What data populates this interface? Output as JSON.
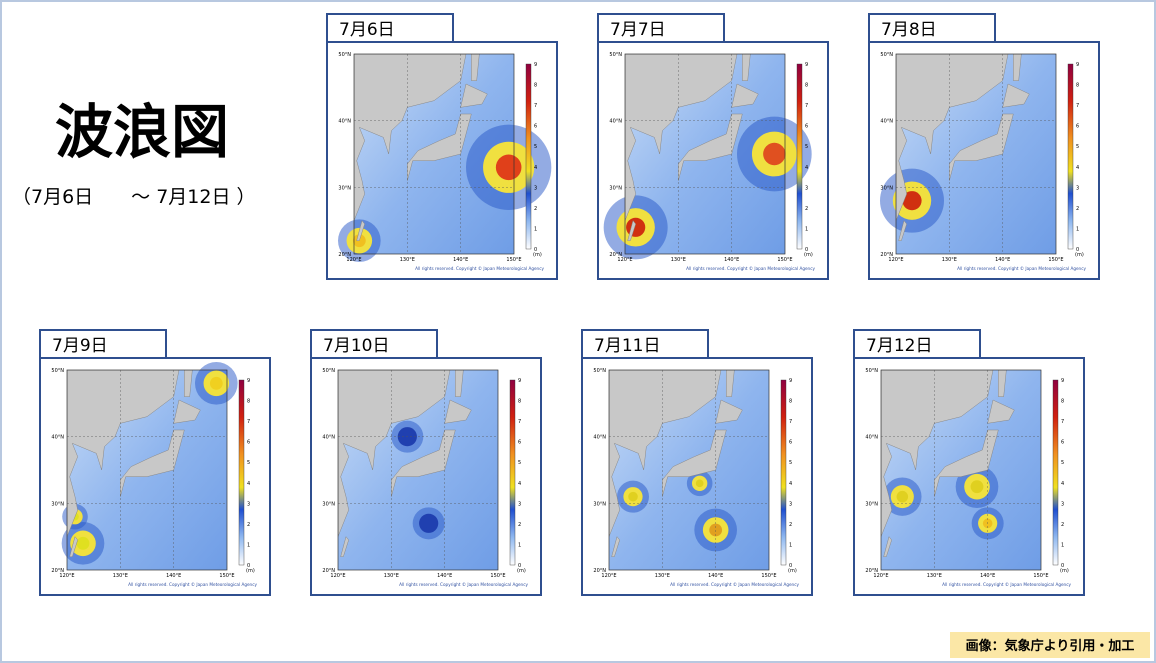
{
  "header": {
    "title": "波浪図",
    "subtitle": "（7月6日　　～ 7月12日 ）"
  },
  "panels": [
    {
      "date": "7月6日"
    },
    {
      "date": "7月7日"
    },
    {
      "date": "7月8日"
    },
    {
      "date": "7月9日"
    },
    {
      "date": "7月10日"
    },
    {
      "date": "7月11日"
    },
    {
      "date": "7月12日"
    }
  ],
  "map": {
    "lat_labels": [
      "50°N",
      "40°N",
      "30°N",
      "20°N"
    ],
    "lon_labels": [
      "120°E",
      "130°E",
      "140°E",
      "150°E"
    ],
    "colorbar_ticks": [
      0,
      1,
      2,
      3,
      4,
      5,
      6,
      7,
      8,
      9
    ],
    "unit": "(m)",
    "copyright": "All rights reserved. Copyright © Japan Meteorological Agency"
  },
  "credit": "画像：気象庁より引用・加工"
}
